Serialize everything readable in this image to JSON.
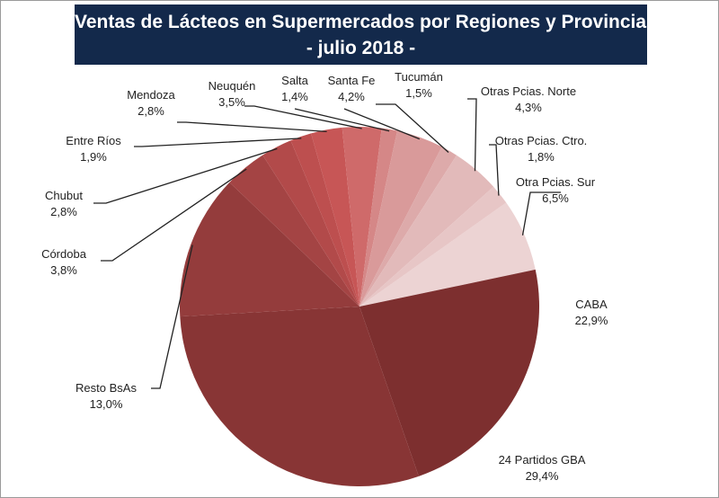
{
  "chart_data": {
    "type": "pie",
    "title": "Ventas de Lácteos en Supermercados por Regiones y Provincias",
    "subtitle": "- julio 2018 -",
    "slices": [
      {
        "label": "Otra Pcias. Sur",
        "value": 6.5,
        "display": "6,5%",
        "color": "#ecd3d3"
      },
      {
        "label": "CABA",
        "value": 22.9,
        "display": "22,9%",
        "color": "#7d2f2f"
      },
      {
        "label": "24 Partidos GBA",
        "value": 29.4,
        "display": "29,4%",
        "color": "#883535"
      },
      {
        "label": "Resto BsAs",
        "value": 13.0,
        "display": "13,0%",
        "color": "#943c3c"
      },
      {
        "label": "Córdoba",
        "value": 3.8,
        "display": "3,8%",
        "color": "#a44444"
      },
      {
        "label": "Chubut",
        "value": 2.8,
        "display": "2,8%",
        "color": "#b24a4a"
      },
      {
        "label": "Entre Ríos",
        "value": 1.9,
        "display": "1,9%",
        "color": "#bd4f4f"
      },
      {
        "label": "Mendoza",
        "value": 2.8,
        "display": "2,8%",
        "color": "#c75656"
      },
      {
        "label": "Neuquén",
        "value": 3.5,
        "display": "3,5%",
        "color": "#cf6a6a"
      },
      {
        "label": "Salta",
        "value": 1.4,
        "display": "1,4%",
        "color": "#d58787"
      },
      {
        "label": "Santa Fe",
        "value": 4.2,
        "display": "4,2%",
        "color": "#d99a9a"
      },
      {
        "label": "Tucumán",
        "value": 1.5,
        "display": "1,5%",
        "color": "#ddaaaa"
      },
      {
        "label": "Otras Pcias. Norte",
        "value": 4.3,
        "display": "4,3%",
        "color": "#e2baba"
      },
      {
        "label": "Otras Pcias. Ctro.",
        "value": 1.8,
        "display": "1,8%",
        "color": "#e7c6c6"
      }
    ]
  }
}
